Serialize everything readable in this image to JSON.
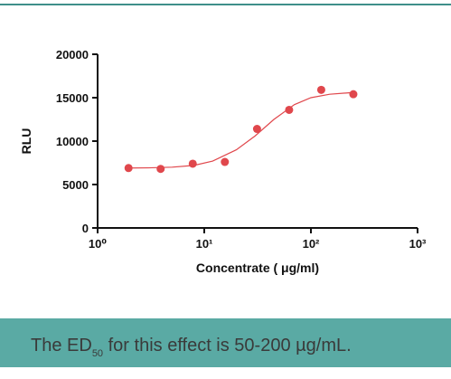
{
  "chart_data": {
    "type": "scatter",
    "xlabel": "Concentrate ( μg/ml)",
    "ylabel": "RLU",
    "xscale": "log",
    "xlim": [
      1,
      1000
    ],
    "xticks": [
      {
        "value": 1,
        "label": "10⁰"
      },
      {
        "value": 10,
        "label": "10¹"
      },
      {
        "value": 100,
        "label": "10²"
      },
      {
        "value": 1000,
        "label": "10³"
      }
    ],
    "ylim": [
      0,
      20000
    ],
    "yticks": [
      0,
      5000,
      10000,
      15000,
      20000
    ],
    "series": [
      {
        "type": "scatter",
        "color": "#e0474c",
        "x": [
          1.95,
          3.9,
          7.8,
          15.6,
          31.25,
          62.5,
          125,
          250
        ],
        "values": [
          6900,
          6800,
          7400,
          7600,
          11400,
          13600,
          15900,
          15400
        ]
      },
      {
        "type": "line",
        "color": "#e0474c",
        "x": [
          1.95,
          3,
          5,
          8,
          12,
          20,
          30,
          45,
          70,
          100,
          150,
          250
        ],
        "values": [
          6900,
          6920,
          7000,
          7200,
          7700,
          9000,
          10600,
          12500,
          14200,
          15000,
          15400,
          15600
        ]
      }
    ]
  },
  "banner": {
    "text_before": "The ED",
    "subscript": "50",
    "text_after": " for this effect is 50-200 µg/mL."
  }
}
